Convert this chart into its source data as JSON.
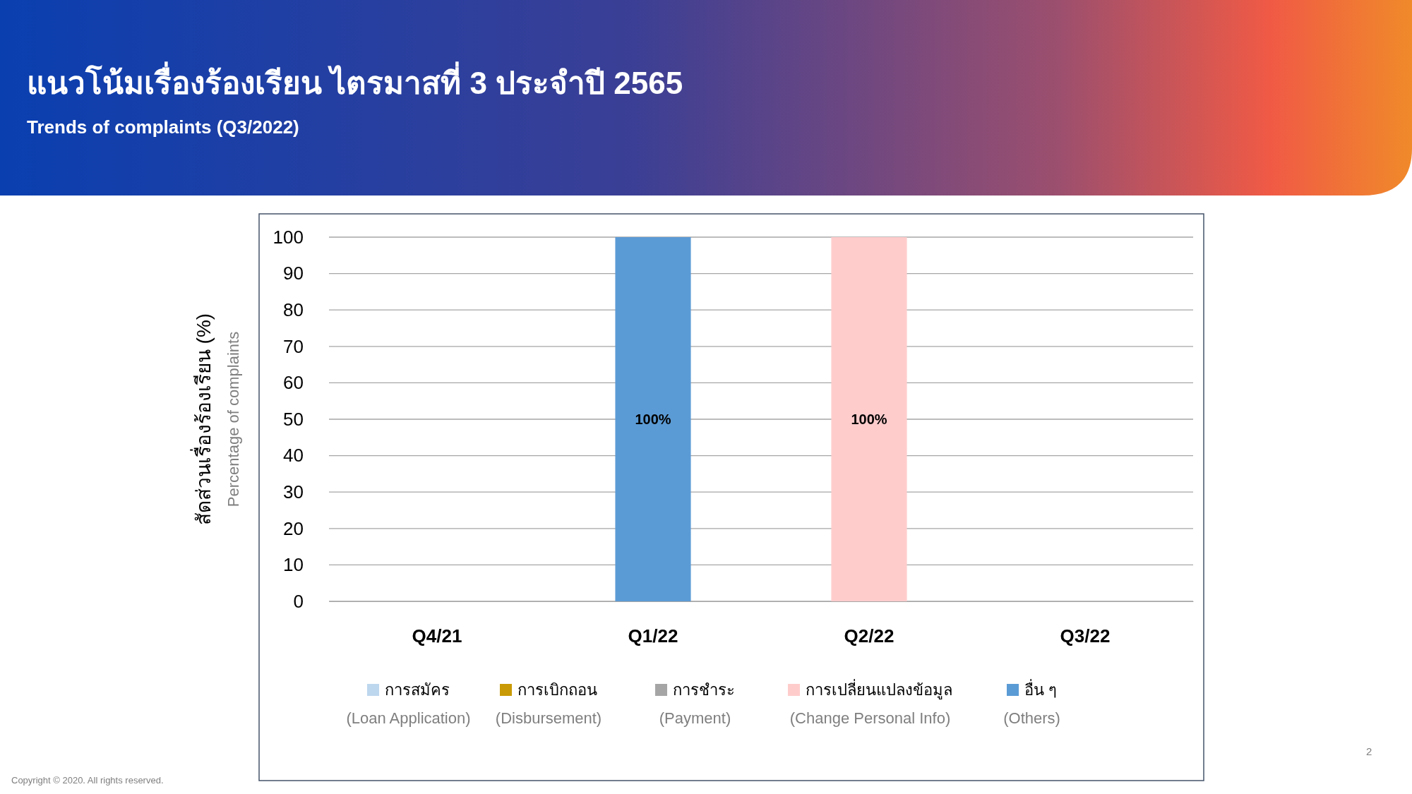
{
  "chart_data": {
    "type": "bar",
    "stacked": true,
    "title": "แนวโน้มเรื่องร้องเรียน ไตรมาสที่ 3 ประจำปี 2565",
    "subtitle": "Trends of complaints (Q3/2022)",
    "ylabel": "สัดส่วนเรื่องร้องเรียน (%)\nPercentage of complaints",
    "categories": [
      "Q4/21",
      "Q1/22",
      "Q2/22",
      "Q3/22"
    ],
    "series": [
      {
        "name": "การสมัคร\n(Loan Application)",
        "color": "#bdd7ee",
        "values": [
          null,
          null,
          null,
          null
        ]
      },
      {
        "name": "การเบิกถอน\n(Disbursement)",
        "color": "#c99a06",
        "values": [
          null,
          null,
          null,
          null
        ]
      },
      {
        "name": "การชำระ\n(Payment)",
        "color": "#a5a5a5",
        "values": [
          null,
          null,
          null,
          null
        ]
      },
      {
        "name": "การเปลี่ยนแปลงข้อมูล\n(Change Personal Info)",
        "color": "#ffcccc",
        "values": [
          null,
          null,
          100,
          null
        ],
        "value_labels": [
          null,
          null,
          "100%",
          null
        ]
      },
      {
        "name": "อื่น ๆ\n(Others)",
        "color": "#5b9bd5",
        "values": [
          null,
          100,
          null,
          null
        ],
        "value_labels": [
          null,
          "100%",
          null,
          null
        ]
      }
    ],
    "ylim": [
      0,
      100
    ],
    "yticks": [
      0,
      10,
      20,
      30,
      40,
      50,
      60,
      70,
      80,
      90,
      100
    ],
    "grid": "y",
    "legend": "bottom",
    "annotations": [
      "Copyright © 2020. All rights reserved.",
      "2"
    ]
  }
}
